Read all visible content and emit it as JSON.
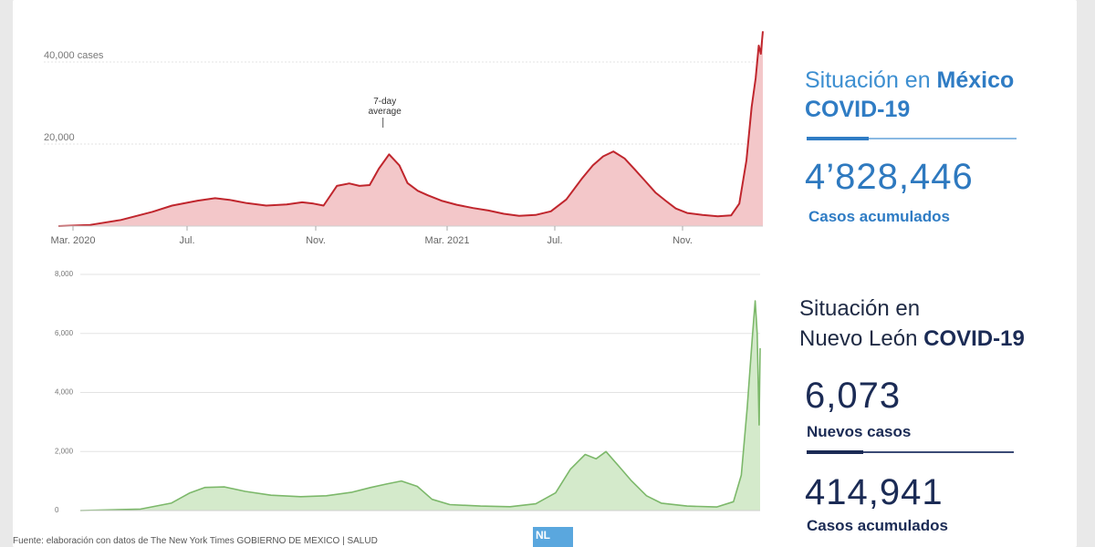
{
  "mexico": {
    "title_prefix": "Situación en ",
    "title_bold": "México",
    "title_line2": "COVID-19",
    "cases_total": "4’828,446",
    "cases_label": "Casos acumulados"
  },
  "nuevo_leon": {
    "title_line1": "Situación en",
    "title_line2_prefix": "Nuevo León ",
    "title_line2_bold": "COVID-19",
    "new_cases": "6,073",
    "new_cases_label": "Nuevos casos",
    "cases_total": "414,941",
    "cases_label": "Casos acumulados"
  },
  "footer": {
    "text": "Fuente: elaboración con datos de The New York Times   GOBIERNO DE MÉXICO | SALUD"
  },
  "logo": {
    "text": "NL"
  },
  "colors": {
    "mexico_line": "#c0262d",
    "mexico_fill": "#f3c7c9",
    "nl_line": "#7cb86a",
    "nl_fill": "#d4eacb",
    "mexico_accent": "#2f7cc4",
    "nl_accent": "#1b2b55"
  },
  "chart_data": [
    {
      "type": "area",
      "title": "",
      "annotation": {
        "text_line1": "7-day",
        "text_line2": "average",
        "x": "2021-01-12"
      },
      "x_ticks": [
        "Mar. 2020",
        "Jul.",
        "Nov.",
        "Mar. 2021",
        "Jul.",
        "Nov."
      ],
      "y_ticks": [
        {
          "value": 20000,
          "label": "20,000"
        },
        {
          "value": 40000,
          "label": "40,000 cases"
        }
      ],
      "ylim": [
        0,
        48000
      ],
      "xlim": [
        "2020-03-01",
        "2022-01-18"
      ],
      "grid": true,
      "series": [
        {
          "points": [
            [
              "2020-03-01",
              0
            ],
            [
              "2020-04-01",
              300
            ],
            [
              "2020-05-01",
              1500
            ],
            [
              "2020-06-01",
              3500
            ],
            [
              "2020-06-20",
              5000
            ],
            [
              "2020-07-15",
              6200
            ],
            [
              "2020-08-01",
              6800
            ],
            [
              "2020-08-15",
              6400
            ],
            [
              "2020-09-01",
              5600
            ],
            [
              "2020-09-20",
              5000
            ],
            [
              "2020-10-10",
              5300
            ],
            [
              "2020-10-25",
              5800
            ],
            [
              "2020-11-05",
              5500
            ],
            [
              "2020-11-15",
              5000
            ],
            [
              "2020-11-28",
              9800
            ],
            [
              "2020-12-10",
              10400
            ],
            [
              "2020-12-20",
              9800
            ],
            [
              "2020-12-30",
              10000
            ],
            [
              "2021-01-08",
              14000
            ],
            [
              "2021-01-18",
              17500
            ],
            [
              "2021-01-28",
              14800
            ],
            [
              "2021-02-05",
              10500
            ],
            [
              "2021-02-15",
              8600
            ],
            [
              "2021-02-25",
              7500
            ],
            [
              "2021-03-10",
              6200
            ],
            [
              "2021-03-25",
              5200
            ],
            [
              "2021-04-10",
              4400
            ],
            [
              "2021-04-25",
              3800
            ],
            [
              "2021-05-10",
              3000
            ],
            [
              "2021-05-25",
              2500
            ],
            [
              "2021-06-10",
              2700
            ],
            [
              "2021-06-25",
              3600
            ],
            [
              "2021-07-10",
              6500
            ],
            [
              "2021-07-25",
              11500
            ],
            [
              "2021-08-05",
              14800
            ],
            [
              "2021-08-15",
              17000
            ],
            [
              "2021-08-25",
              18200
            ],
            [
              "2021-09-05",
              16500
            ],
            [
              "2021-09-15",
              13800
            ],
            [
              "2021-09-25",
              11000
            ],
            [
              "2021-10-05",
              8200
            ],
            [
              "2021-10-15",
              6200
            ],
            [
              "2021-10-25",
              4300
            ],
            [
              "2021-11-05",
              3200
            ],
            [
              "2021-11-20",
              2700
            ],
            [
              "2021-12-05",
              2400
            ],
            [
              "2021-12-18",
              2600
            ],
            [
              "2021-12-26",
              5500
            ],
            [
              "2022-01-02",
              16000
            ],
            [
              "2022-01-07",
              29000
            ],
            [
              "2022-01-11",
              36000
            ],
            [
              "2022-01-14",
              44000
            ],
            [
              "2022-01-16",
              42000
            ],
            [
              "2022-01-18",
              47500
            ]
          ]
        }
      ]
    },
    {
      "type": "area",
      "title": "",
      "x_ticks": [],
      "y_ticks": [
        {
          "value": 0,
          "label": "0"
        },
        {
          "value": 2000,
          "label": "2,000"
        },
        {
          "value": 4000,
          "label": "4,000"
        },
        {
          "value": 6000,
          "label": "6,000"
        },
        {
          "value": 8000,
          "label": "8,000"
        }
      ],
      "ylim": [
        0,
        8000
      ],
      "xlim": [
        "2020-03-01",
        "2022-01-18"
      ],
      "grid": true,
      "series": [
        {
          "points": [
            [
              "2020-03-01",
              0
            ],
            [
              "2020-05-01",
              50
            ],
            [
              "2020-06-01",
              250
            ],
            [
              "2020-06-20",
              600
            ],
            [
              "2020-07-05",
              780
            ],
            [
              "2020-07-25",
              800
            ],
            [
              "2020-08-15",
              650
            ],
            [
              "2020-09-10",
              520
            ],
            [
              "2020-10-10",
              470
            ],
            [
              "2020-11-05",
              500
            ],
            [
              "2020-12-01",
              620
            ],
            [
              "2020-12-20",
              780
            ],
            [
              "2021-01-05",
              900
            ],
            [
              "2021-01-20",
              1000
            ],
            [
              "2021-02-05",
              820
            ],
            [
              "2021-02-20",
              380
            ],
            [
              "2021-03-10",
              200
            ],
            [
              "2021-04-10",
              150
            ],
            [
              "2021-05-10",
              130
            ],
            [
              "2021-06-05",
              230
            ],
            [
              "2021-06-25",
              600
            ],
            [
              "2021-07-10",
              1400
            ],
            [
              "2021-07-25",
              1900
            ],
            [
              "2021-08-05",
              1750
            ],
            [
              "2021-08-15",
              2000
            ],
            [
              "2021-08-28",
              1500
            ],
            [
              "2021-09-10",
              1000
            ],
            [
              "2021-09-25",
              500
            ],
            [
              "2021-10-10",
              250
            ],
            [
              "2021-11-05",
              150
            ],
            [
              "2021-12-05",
              120
            ],
            [
              "2021-12-22",
              300
            ],
            [
              "2021-12-30",
              1200
            ],
            [
              "2022-01-05",
              3500
            ],
            [
              "2022-01-10",
              5800
            ],
            [
              "2022-01-13",
              7100
            ],
            [
              "2022-01-15",
              6000
            ],
            [
              "2022-01-17",
              2900
            ],
            [
              "2022-01-18",
              5500
            ]
          ]
        }
      ]
    }
  ]
}
